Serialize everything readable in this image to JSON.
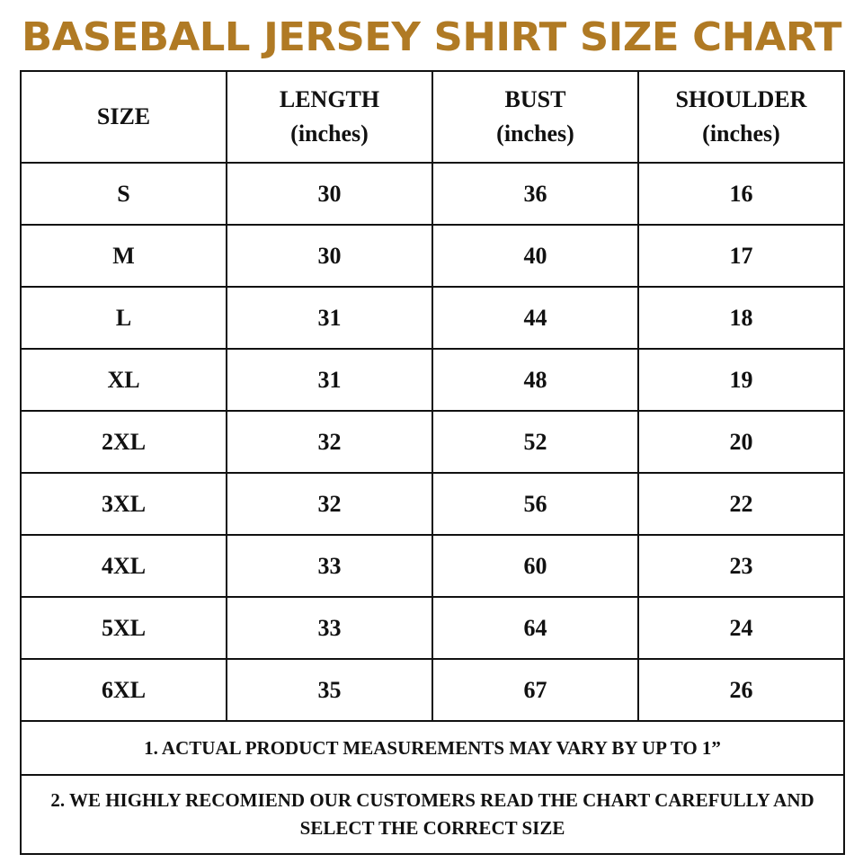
{
  "title": "BASEBALL JERSEY SHIRT SIZE CHART",
  "colors": {
    "title": "#b07a24",
    "border": "#111111",
    "text": "#111111"
  },
  "headers": [
    {
      "label": "SIZE",
      "unit": ""
    },
    {
      "label": "LENGTH",
      "unit": "(inches)"
    },
    {
      "label": "BUST",
      "unit": "(inches)"
    },
    {
      "label": "SHOULDER",
      "unit": "(inches)"
    }
  ],
  "rows": [
    [
      "S",
      "30",
      "36",
      "16"
    ],
    [
      "M",
      "30",
      "40",
      "17"
    ],
    [
      "L",
      "31",
      "44",
      "18"
    ],
    [
      "XL",
      "31",
      "48",
      "19"
    ],
    [
      "2XL",
      "32",
      "52",
      "20"
    ],
    [
      "3XL",
      "32",
      "56",
      "22"
    ],
    [
      "4XL",
      "33",
      "60",
      "23"
    ],
    [
      "5XL",
      "33",
      "64",
      "24"
    ],
    [
      "6XL",
      "35",
      "67",
      "26"
    ]
  ],
  "notes": [
    "1. ACTUAL PRODUCT MEASUREMENTS MAY VARY BY UP TO 1”",
    "2. WE HIGHLY RECOMIEND OUR CUSTOMERS READ THE CHART CAREFULLY AND SELECT THE CORRECT SIZE"
  ]
}
